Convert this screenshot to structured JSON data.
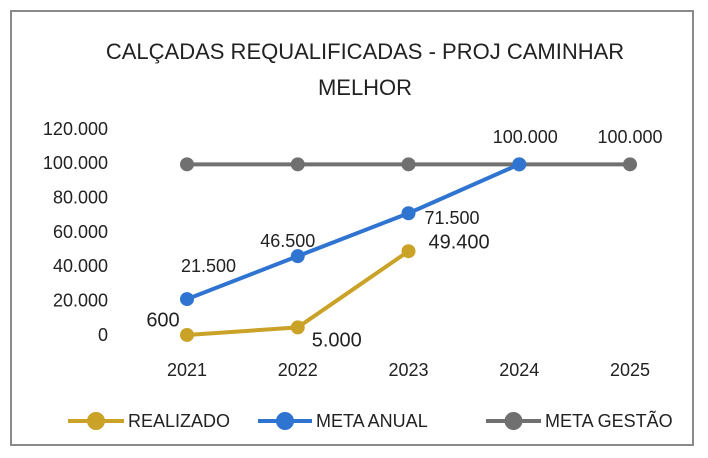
{
  "chart_data": {
    "type": "line",
    "title": "CALÇADAS REQUALIFICADAS - PROJ CAMINHAR MELHOR",
    "categories": [
      "2021",
      "2022",
      "2023",
      "2024",
      "2025"
    ],
    "series": [
      {
        "name": "REALIZADO",
        "color": "#c9a227",
        "values": [
          600,
          5000,
          49400,
          null,
          null
        ],
        "value_labels": [
          "600",
          "5.000",
          "49.400",
          null,
          null
        ]
      },
      {
        "name": "META ANUAL",
        "color": "#2f74d0",
        "values": [
          21500,
          46500,
          71500,
          100000,
          null
        ],
        "value_labels": [
          "21.500",
          "46.500",
          "71.500",
          "100.000",
          null
        ]
      },
      {
        "name": "META GESTÃO",
        "color": "#707070",
        "values": [
          100000,
          100000,
          100000,
          100000,
          100000
        ],
        "value_labels": [
          null,
          null,
          null,
          null,
          "100.000"
        ]
      }
    ],
    "ylim": [
      0,
      120000
    ],
    "yticks": [
      0,
      {
        "value": 20000,
        "label": "20.000"
      },
      {
        "value": 40000,
        "label": "40.000"
      },
      {
        "value": 60000,
        "label": "60.000"
      },
      {
        "value": 80000,
        "label": "80.000"
      },
      {
        "value": 100000,
        "label": "100.000"
      },
      {
        "value": 120000,
        "label": "120.000"
      }
    ],
    "grid": false,
    "legend": "bottom"
  }
}
